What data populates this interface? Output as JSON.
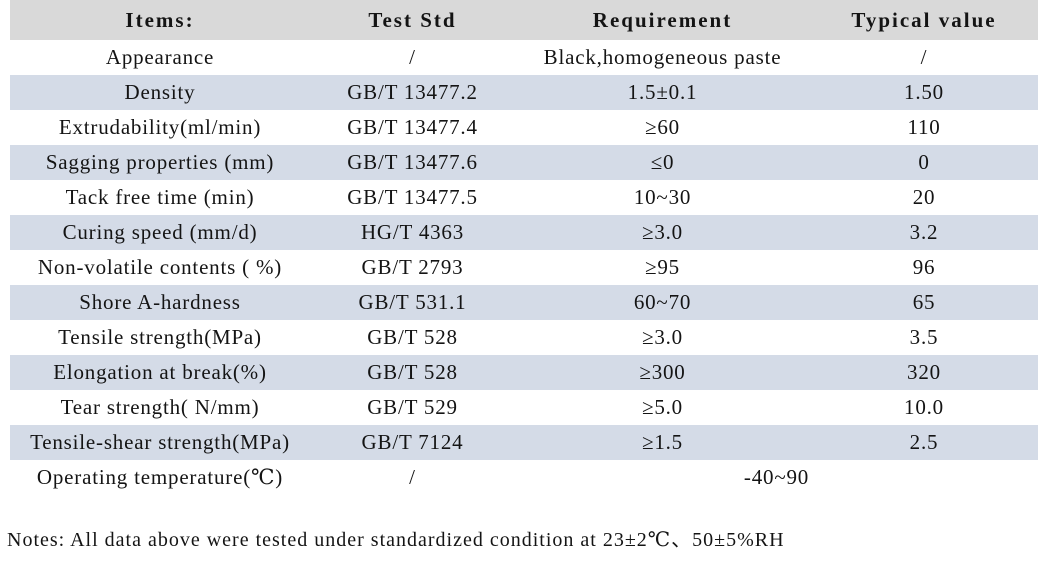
{
  "table": {
    "header": {
      "items": "Items:",
      "test_std": "Test Std",
      "requirement": "Requirement",
      "typical_value": "Typical value"
    },
    "rows": [
      {
        "item": "Appearance",
        "test_std": "/",
        "requirement": "Black,homogeneous paste",
        "typical_value": "/"
      },
      {
        "item": "Density",
        "test_std": "GB/T 13477.2",
        "requirement": "1.5±0.1",
        "typical_value": "1.50"
      },
      {
        "item": "Extrudability(ml/min)",
        "test_std": "GB/T 13477.4",
        "requirement": "≥60",
        "typical_value": "110"
      },
      {
        "item": "Sagging properties (mm)",
        "test_std": "GB/T 13477.6",
        "requirement": "≤0",
        "typical_value": "0"
      },
      {
        "item": "Tack free time (min)",
        "test_std": "GB/T 13477.5",
        "requirement": "10~30",
        "typical_value": "20"
      },
      {
        "item": "Curing speed (mm/d)",
        "test_std": "HG/T 4363",
        "requirement": "≥3.0",
        "typical_value": "3.2"
      },
      {
        "item": "Non-volatile contents ( %)",
        "test_std": "GB/T 2793",
        "requirement": "≥95",
        "typical_value": "96"
      },
      {
        "item": "Shore A-hardness",
        "test_std": "GB/T 531.1",
        "requirement": "60~70",
        "typical_value": "65"
      },
      {
        "item": "Tensile strength(MPa)",
        "test_std": "GB/T 528",
        "requirement": "≥3.0",
        "typical_value": "3.5"
      },
      {
        "item": "Elongation at break(%)",
        "test_std": "GB/T 528",
        "requirement": "≥300",
        "typical_value": "320"
      },
      {
        "item": "Tear strength( N/mm)",
        "test_std": "GB/T 529",
        "requirement": "≥5.0",
        "typical_value": "10.0"
      },
      {
        "item": "Tensile-shear strength(MPa)",
        "test_std": "GB/T 7124",
        "requirement": "≥1.5",
        "typical_value": "2.5"
      }
    ],
    "footer_row": {
      "item": "Operating temperature(℃)",
      "test_std": "/",
      "range": "-40~90"
    }
  },
  "notes": "Notes: All data above were tested under standardized condition at 23±2℃、50±5%RH",
  "colors": {
    "header_bg": "#d9d9d9",
    "stripe_bg": "#d4dbe7"
  }
}
